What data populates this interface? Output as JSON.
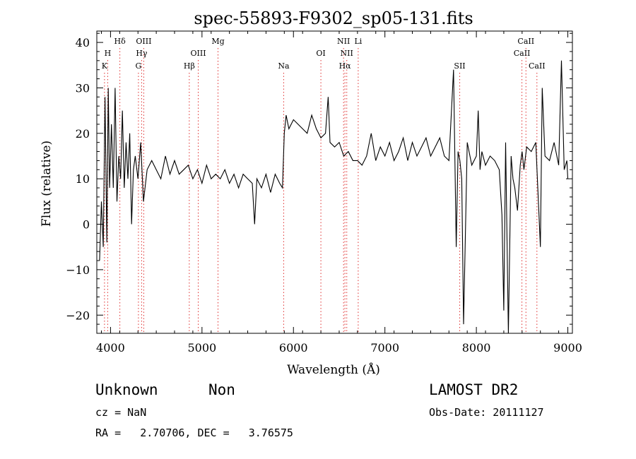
{
  "chart_data": {
    "type": "line",
    "title": "spec-55893-F9302_sp05-131.fits",
    "xlabel": "Wavelength (Å)",
    "ylabel": "Flux (relative)",
    "xlim": [
      3850,
      9050
    ],
    "ylim": [
      -24,
      42.5
    ],
    "xticks": [
      4000,
      5000,
      6000,
      7000,
      8000,
      9000
    ],
    "yticks": [
      -20,
      -10,
      0,
      10,
      20,
      30,
      40
    ],
    "grid": false,
    "line_color": "#000000",
    "marker_color": "#e03030",
    "series": [
      {
        "x": [
          3880,
          3900,
          3920,
          3940,
          3960,
          3975,
          3990,
          4010,
          4030,
          4050,
          4070,
          4090,
          4110,
          4130,
          4150,
          4170,
          4190,
          4210,
          4230,
          4250,
          4270,
          4300,
          4330,
          4360,
          4400,
          4450,
          4500,
          4550,
          4600,
          4650,
          4700,
          4750,
          4800,
          4850,
          4900,
          4950,
          5000,
          5050,
          5100,
          5150,
          5200,
          5250,
          5300,
          5350,
          5400,
          5450,
          5500,
          5550,
          5575,
          5600,
          5650,
          5700,
          5750,
          5800,
          5850,
          5880,
          5900,
          5920,
          5950,
          6000,
          6050,
          6100,
          6150,
          6200,
          6250,
          6300,
          6350,
          6380,
          6400,
          6450,
          6500,
          6550,
          6600,
          6650,
          6700,
          6750,
          6800,
          6850,
          6900,
          6950,
          7000,
          7050,
          7100,
          7150,
          7200,
          7250,
          7300,
          7350,
          7400,
          7450,
          7500,
          7550,
          7600,
          7650,
          7700,
          7750,
          7780,
          7800,
          7820,
          7840,
          7860,
          7900,
          7950,
          8000,
          8020,
          8040,
          8060,
          8100,
          8150,
          8200,
          8250,
          8280,
          8300,
          8320,
          8350,
          8380,
          8400,
          8420,
          8450,
          8480,
          8500,
          8520,
          8550,
          8600,
          8650,
          8700,
          8720,
          8750,
          8800,
          8850,
          8900,
          8930,
          8960,
          8990,
          9000
        ],
        "y": [
          -8,
          5,
          -5,
          28,
          -4,
          30,
          8,
          22,
          8,
          30,
          5,
          15,
          10,
          25,
          8,
          18,
          10,
          20,
          0,
          12,
          15,
          10,
          18,
          5,
          12,
          14,
          12,
          10,
          15,
          11,
          14,
          11,
          12,
          13,
          10,
          12,
          9,
          13,
          10,
          11,
          10,
          12,
          9,
          11,
          8,
          11,
          10,
          9,
          0,
          10,
          8,
          11,
          7,
          11,
          9,
          8,
          20,
          24,
          21,
          23,
          22,
          21,
          20,
          24,
          21,
          19,
          20,
          28,
          18,
          17,
          18,
          15,
          16,
          14,
          14,
          13,
          15,
          20,
          14,
          17,
          15,
          18,
          14,
          16,
          19,
          14,
          18,
          15,
          17,
          19,
          15,
          17,
          19,
          15,
          14,
          34,
          -5,
          16,
          14,
          10,
          -22,
          18,
          13,
          15,
          25,
          12,
          16,
          13,
          15,
          14,
          12,
          2,
          -19,
          18,
          -24,
          15,
          10,
          8,
          3,
          13,
          16,
          12,
          17,
          16,
          18,
          -5,
          30,
          15,
          14,
          18,
          13,
          36,
          12,
          14,
          10
        ]
      }
    ],
    "line_markers": [
      {
        "label": "K",
        "x": 3934,
        "row": 3
      },
      {
        "label": "H",
        "x": 3969,
        "row": 2
      },
      {
        "label": "Hδ",
        "x": 4102,
        "row": 1
      },
      {
        "label": "OIII",
        "x": 4363,
        "row": 1
      },
      {
        "label": "Hγ",
        "x": 4340,
        "row": 2
      },
      {
        "label": "G",
        "x": 4305,
        "row": 3
      },
      {
        "label": "OIII",
        "x": 4959,
        "row": 2
      },
      {
        "label": "Hβ",
        "x": 4861,
        "row": 3
      },
      {
        "label": "Mg",
        "x": 5175,
        "row": 1
      },
      {
        "label": "Na",
        "x": 5893,
        "row": 3
      },
      {
        "label": "OI",
        "x": 6300,
        "row": 2
      },
      {
        "label": "NII",
        "x": 6548,
        "row": 1
      },
      {
        "label": "NII",
        "x": 6583,
        "row": 2
      },
      {
        "label": "Hα",
        "x": 6563,
        "row": 3
      },
      {
        "label": "Li",
        "x": 6708,
        "row": 1
      },
      {
        "label": "SII",
        "x": 7818,
        "row": 3
      },
      {
        "label": "CaII",
        "x": 8542,
        "row": 1
      },
      {
        "label": "CaII",
        "x": 8498,
        "row": 2
      },
      {
        "label": "CaII",
        "x": 8662,
        "row": 3
      }
    ]
  },
  "info": {
    "class": "Unknown",
    "subclass": "Non",
    "survey": "LAMOST DR2",
    "cz_line": "cz = NaN",
    "obs_date_line": "Obs-Date: 20111127",
    "radec_line": "RA =   2.70706, DEC =   3.76575"
  }
}
